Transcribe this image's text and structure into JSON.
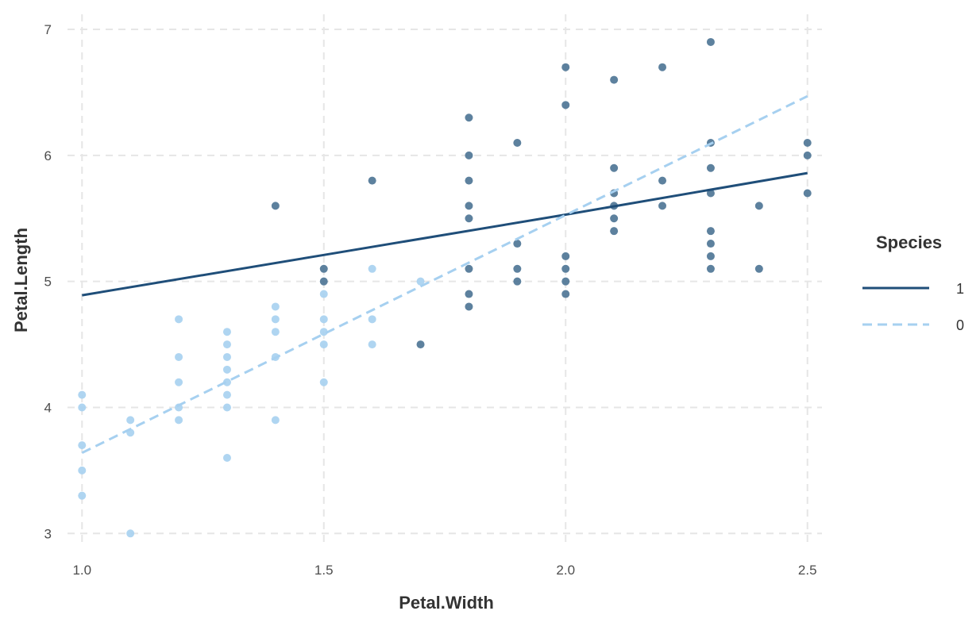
{
  "chart_data": {
    "type": "scatter",
    "xlabel": "Petal.Width",
    "ylabel": "Petal.Length",
    "xlim": [
      0.97,
      2.53
    ],
    "ylim": [
      2.92,
      7.12
    ],
    "x_ticks": [
      1.0,
      1.5,
      2.0,
      2.5
    ],
    "x_tick_labels": [
      "1.0",
      "1.5",
      "2.0",
      "2.5"
    ],
    "y_ticks": [
      3,
      4,
      5,
      6,
      7
    ],
    "y_tick_labels": [
      "3",
      "4",
      "5",
      "6",
      "7"
    ],
    "grid": true,
    "legend": {
      "title": "Species",
      "placement": "right",
      "entries": [
        {
          "label": "1",
          "line": "solid",
          "color": "#1f4e79"
        },
        {
          "label": "0",
          "line": "dashed",
          "color": "#a6d0f0"
        }
      ]
    },
    "series": [
      {
        "key": "1",
        "color": "#2b5a80",
        "point_color": "#4f7696",
        "line_color": "#1f4e79",
        "line_style": "solid",
        "points": [
          [
            1.4,
            5.6
          ],
          [
            1.5,
            5.1
          ],
          [
            1.5,
            5.0
          ],
          [
            1.6,
            5.8
          ],
          [
            1.7,
            4.5
          ],
          [
            1.8,
            6.3
          ],
          [
            1.8,
            6.0
          ],
          [
            1.8,
            5.8
          ],
          [
            1.8,
            5.6
          ],
          [
            1.8,
            5.5
          ],
          [
            1.8,
            5.1
          ],
          [
            1.8,
            4.9
          ],
          [
            1.8,
            4.8
          ],
          [
            1.9,
            6.1
          ],
          [
            1.9,
            5.3
          ],
          [
            1.9,
            5.1
          ],
          [
            1.9,
            5.0
          ],
          [
            2.0,
            6.7
          ],
          [
            2.0,
            6.4
          ],
          [
            2.0,
            5.2
          ],
          [
            2.0,
            5.1
          ],
          [
            2.0,
            5.0
          ],
          [
            2.0,
            4.9
          ],
          [
            2.1,
            6.6
          ],
          [
            2.1,
            5.9
          ],
          [
            2.1,
            5.7
          ],
          [
            2.1,
            5.6
          ],
          [
            2.1,
            5.5
          ],
          [
            2.1,
            5.4
          ],
          [
            2.2,
            6.7
          ],
          [
            2.2,
            5.8
          ],
          [
            2.2,
            5.6
          ],
          [
            2.3,
            6.9
          ],
          [
            2.3,
            6.1
          ],
          [
            2.3,
            5.9
          ],
          [
            2.3,
            5.7
          ],
          [
            2.3,
            5.4
          ],
          [
            2.3,
            5.3
          ],
          [
            2.3,
            5.2
          ],
          [
            2.3,
            5.1
          ],
          [
            2.4,
            5.6
          ],
          [
            2.4,
            5.1
          ],
          [
            2.5,
            6.1
          ],
          [
            2.5,
            6.0
          ],
          [
            2.5,
            5.7
          ]
        ],
        "fit": [
          [
            1.0,
            4.89
          ],
          [
            1.5,
            5.21
          ],
          [
            2.0,
            5.53
          ],
          [
            2.5,
            5.86
          ]
        ]
      },
      {
        "key": "0",
        "color": "#a6d0f0",
        "point_color": "#a6d0f0",
        "line_color": "#a6d0f0",
        "line_style": "dashed",
        "points": [
          [
            1.0,
            4.1
          ],
          [
            1.0,
            4.0
          ],
          [
            1.0,
            3.7
          ],
          [
            1.0,
            3.5
          ],
          [
            1.0,
            3.3
          ],
          [
            1.1,
            3.9
          ],
          [
            1.1,
            3.8
          ],
          [
            1.1,
            3.0
          ],
          [
            1.2,
            4.7
          ],
          [
            1.2,
            4.4
          ],
          [
            1.2,
            4.2
          ],
          [
            1.2,
            4.0
          ],
          [
            1.2,
            3.9
          ],
          [
            1.3,
            4.6
          ],
          [
            1.3,
            4.5
          ],
          [
            1.3,
            4.4
          ],
          [
            1.3,
            4.3
          ],
          [
            1.3,
            4.2
          ],
          [
            1.3,
            4.1
          ],
          [
            1.3,
            4.0
          ],
          [
            1.3,
            3.6
          ],
          [
            1.4,
            4.8
          ],
          [
            1.4,
            4.7
          ],
          [
            1.4,
            4.6
          ],
          [
            1.4,
            4.4
          ],
          [
            1.4,
            3.9
          ],
          [
            1.5,
            4.9
          ],
          [
            1.5,
            4.7
          ],
          [
            1.5,
            4.6
          ],
          [
            1.5,
            4.5
          ],
          [
            1.5,
            4.2
          ],
          [
            1.6,
            5.1
          ],
          [
            1.6,
            4.7
          ],
          [
            1.6,
            4.5
          ],
          [
            1.7,
            5.0
          ]
        ],
        "fit": [
          [
            1.0,
            3.64
          ],
          [
            2.5,
            6.47
          ]
        ]
      }
    ]
  }
}
